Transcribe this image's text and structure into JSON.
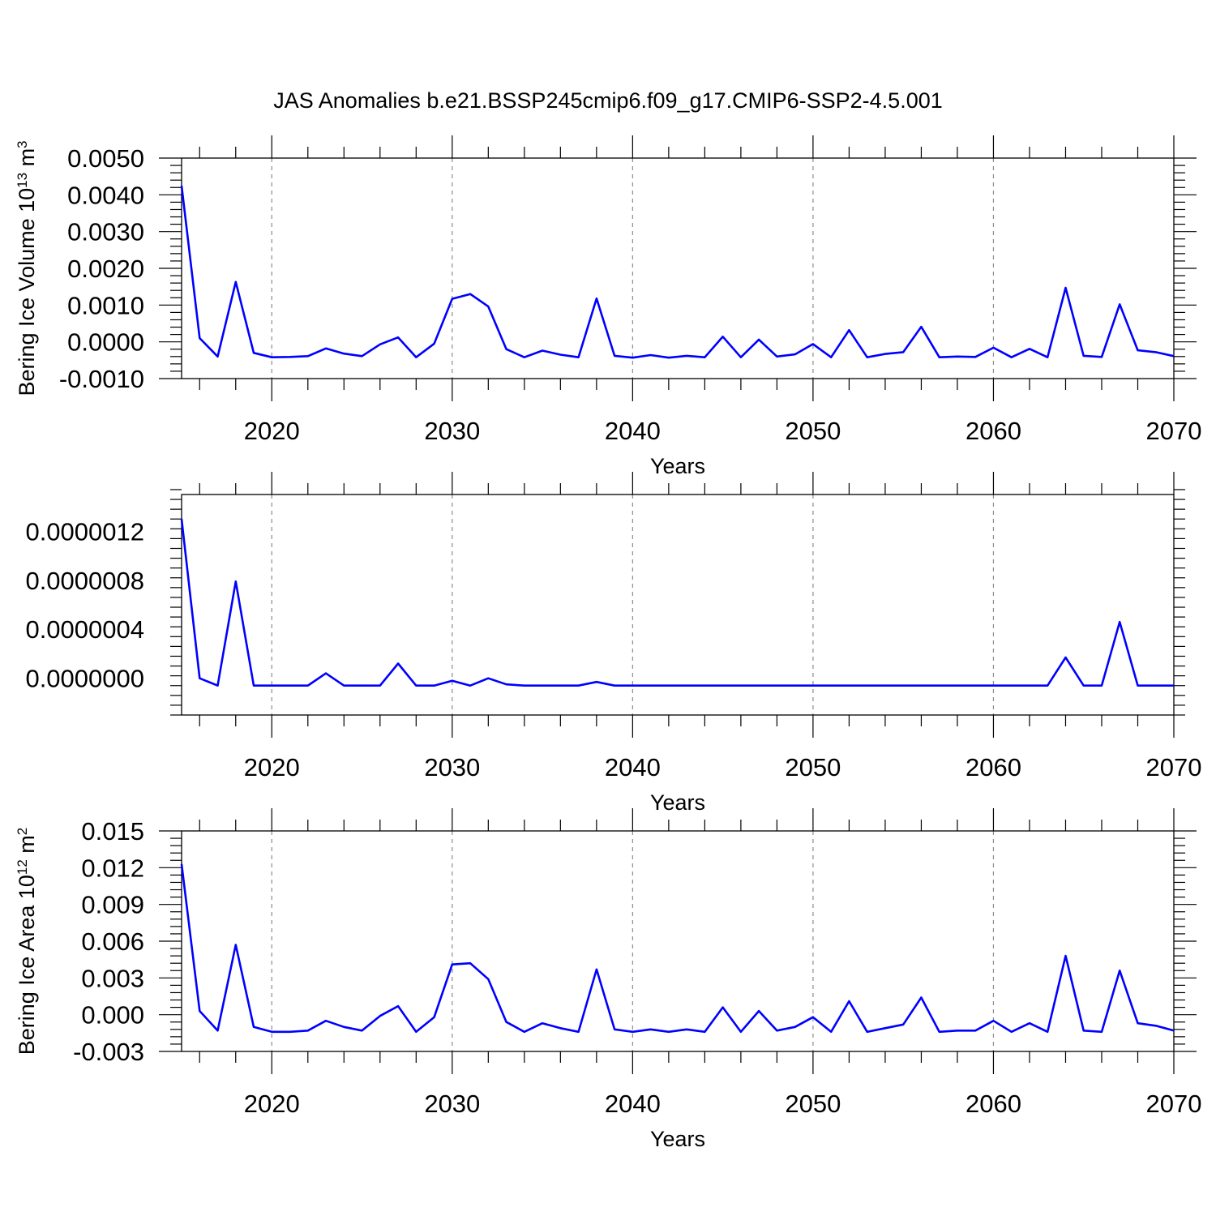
{
  "title": "JAS Anomalies b.e21.BSSP245cmip6.f09_g17.CMIP6-SSP2-4.5.001",
  "colors": {
    "series": "#0000ff",
    "axis": "#000000",
    "grid": "#8c8c8c"
  },
  "chart_data": [
    {
      "type": "line",
      "xlabel": "Years",
      "ylabel": "Bering Ice Volume 10",
      "ylabel_exponent": "13",
      "ylabel_unit": " m",
      "ylabel_unit_exponent": "3",
      "xlim": [
        2015,
        2070
      ],
      "ylim": [
        -0.001,
        0.005
      ],
      "xticks": [
        2020,
        2030,
        2040,
        2050,
        2060,
        2070
      ],
      "xtick_labels": [
        "2020",
        "2030",
        "2040",
        "2050",
        "2060",
        "2070"
      ],
      "yticks": [
        -0.001,
        0,
        0.001,
        0.002,
        0.003,
        0.004,
        0.005
      ],
      "ytick_labels": [
        "-0.0010",
        "0.0000",
        "0.0010",
        "0.0020",
        "0.0030",
        "0.0040",
        "0.0050"
      ],
      "grid": "vertical dashed at major x ticks",
      "x": [
        2015,
        2016,
        2017,
        2018,
        2019,
        2020,
        2021,
        2022,
        2023,
        2024,
        2025,
        2026,
        2027,
        2028,
        2029,
        2030,
        2031,
        2032,
        2033,
        2034,
        2035,
        2036,
        2037,
        2038,
        2039,
        2040,
        2041,
        2042,
        2043,
        2044,
        2045,
        2046,
        2047,
        2048,
        2049,
        2050,
        2051,
        2052,
        2053,
        2054,
        2055,
        2056,
        2057,
        2058,
        2059,
        2060,
        2061,
        2062,
        2063,
        2064,
        2065,
        2066,
        2067,
        2068,
        2069,
        2070
      ],
      "values": [
        0.00425,
        0.0001,
        -0.0004,
        0.00163,
        -0.0003,
        -0.00042,
        -0.00041,
        -0.00039,
        -0.00018,
        -0.00032,
        -0.00039,
        -7e-05,
        0.00012,
        -0.00042,
        -5e-05,
        0.00117,
        0.0013,
        0.00096,
        -0.0002,
        -0.00042,
        -0.00024,
        -0.00035,
        -0.00042,
        0.00118,
        -0.00038,
        -0.00043,
        -0.00036,
        -0.00043,
        -0.00038,
        -0.00042,
        0.00014,
        -0.00042,
        6e-05,
        -0.0004,
        -0.00034,
        -6e-05,
        -0.00042,
        0.00032,
        -0.00042,
        -0.00033,
        -0.00028,
        0.00041,
        -0.00042,
        -0.0004,
        -0.00041,
        -0.00016,
        -0.00042,
        -0.00019,
        -0.00042,
        0.00147,
        -0.00038,
        -0.00041,
        0.00102,
        -0.00023,
        -0.00028,
        -0.00039
      ]
    },
    {
      "type": "line",
      "xlabel": "Years",
      "ylabel": "",
      "xlim": [
        2015,
        2070
      ],
      "ylim": [
        -3e-07,
        1.5e-06
      ],
      "xticks": [
        2020,
        2030,
        2040,
        2050,
        2060,
        2070
      ],
      "xtick_labels": [
        "2020",
        "2030",
        "2040",
        "2050",
        "2060",
        "2070"
      ],
      "yticks": [
        0,
        4e-07,
        8e-07,
        1.2e-06
      ],
      "ytick_labels": [
        "0.0000000",
        "0.0000004",
        "0.0000008",
        "0.0000012"
      ],
      "grid": "vertical dashed at major x ticks",
      "x": [
        2015,
        2016,
        2017,
        2018,
        2019,
        2020,
        2021,
        2022,
        2023,
        2024,
        2025,
        2026,
        2027,
        2028,
        2029,
        2030,
        2031,
        2032,
        2033,
        2034,
        2035,
        2036,
        2037,
        2038,
        2039,
        2040,
        2041,
        2042,
        2043,
        2044,
        2045,
        2046,
        2047,
        2048,
        2049,
        2050,
        2051,
        2052,
        2053,
        2054,
        2055,
        2056,
        2057,
        2058,
        2059,
        2060,
        2061,
        2062,
        2063,
        2064,
        2065,
        2066,
        2067,
        2068,
        2069,
        2070
      ],
      "values": [
        1.3e-06,
        0.0,
        -6e-08,
        7.9e-07,
        -6e-08,
        -6e-08,
        -6e-08,
        -6e-08,
        4e-08,
        -6e-08,
        -6e-08,
        -6e-08,
        1.2e-07,
        -6e-08,
        -6e-08,
        -2e-08,
        -6e-08,
        0.0,
        -5e-08,
        -6e-08,
        -6e-08,
        -6e-08,
        -6e-08,
        -3e-08,
        -6e-08,
        -6e-08,
        -6e-08,
        -6e-08,
        -6e-08,
        -6e-08,
        -6e-08,
        -6e-08,
        -6e-08,
        -6e-08,
        -6e-08,
        -6e-08,
        -6e-08,
        -6e-08,
        -6e-08,
        -6e-08,
        -6e-08,
        -6e-08,
        -6e-08,
        -6e-08,
        -6e-08,
        -6e-08,
        -6e-08,
        -6e-08,
        -6e-08,
        1.7e-07,
        -6e-08,
        -6e-08,
        4.6e-07,
        -6e-08,
        -6e-08,
        -6e-08
      ]
    },
    {
      "type": "line",
      "xlabel": "Years",
      "ylabel": "Bering Ice Area 10",
      "ylabel_exponent": "12",
      "ylabel_unit": " m",
      "ylabel_unit_exponent": "2",
      "xlim": [
        2015,
        2070
      ],
      "ylim": [
        -0.003,
        0.015
      ],
      "xticks": [
        2020,
        2030,
        2040,
        2050,
        2060,
        2070
      ],
      "xtick_labels": [
        "2020",
        "2030",
        "2040",
        "2050",
        "2060",
        "2070"
      ],
      "yticks": [
        -0.003,
        0,
        0.003,
        0.006,
        0.009,
        0.012,
        0.015
      ],
      "ytick_labels": [
        "-0.003",
        "0.000",
        "0.003",
        "0.006",
        "0.009",
        "0.012",
        "0.015"
      ],
      "grid": "vertical dashed at major x ticks",
      "x": [
        2015,
        2016,
        2017,
        2018,
        2019,
        2020,
        2021,
        2022,
        2023,
        2024,
        2025,
        2026,
        2027,
        2028,
        2029,
        2030,
        2031,
        2032,
        2033,
        2034,
        2035,
        2036,
        2037,
        2038,
        2039,
        2040,
        2041,
        2042,
        2043,
        2044,
        2045,
        2046,
        2047,
        2048,
        2049,
        2050,
        2051,
        2052,
        2053,
        2054,
        2055,
        2056,
        2057,
        2058,
        2059,
        2060,
        2061,
        2062,
        2063,
        2064,
        2065,
        2066,
        2067,
        2068,
        2069,
        2070
      ],
      "values": [
        0.0123,
        0.0003,
        -0.0013,
        0.0057,
        -0.001,
        -0.0014,
        -0.0014,
        -0.0013,
        -0.0005,
        -0.001,
        -0.0013,
        -0.0001,
        0.0007,
        -0.0014,
        -0.0002,
        0.0041,
        0.0042,
        0.0029,
        -0.0006,
        -0.0014,
        -0.0007,
        -0.0011,
        -0.0014,
        0.0037,
        -0.0012,
        -0.0014,
        -0.0012,
        -0.0014,
        -0.0012,
        -0.0014,
        0.0006,
        -0.0014,
        0.0003,
        -0.0013,
        -0.001,
        -0.0002,
        -0.0014,
        0.0011,
        -0.0014,
        -0.0011,
        -0.0008,
        0.0014,
        -0.0014,
        -0.0013,
        -0.0013,
        -0.0005,
        -0.0014,
        -0.0007,
        -0.0014,
        0.0048,
        -0.0013,
        -0.0014,
        0.0036,
        -0.0007,
        -0.0009,
        -0.0013
      ]
    }
  ]
}
